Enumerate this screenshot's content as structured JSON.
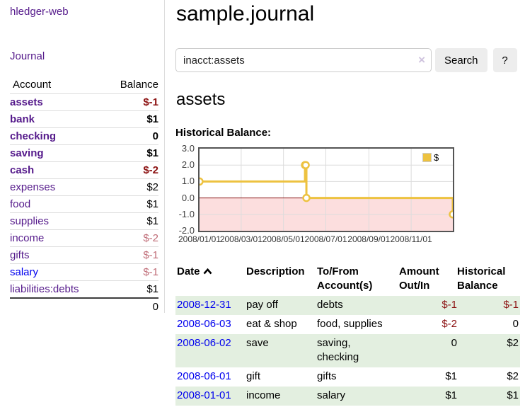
{
  "app": {
    "title": "hledger-web"
  },
  "nav": {
    "journal_label": "Journal"
  },
  "sidebar": {
    "headers": {
      "account": "Account",
      "balance": "Balance"
    },
    "accounts": [
      {
        "name": "assets",
        "balance": "$-1"
      },
      {
        "name": "bank",
        "balance": "$1"
      },
      {
        "name": "checking",
        "balance": "0"
      },
      {
        "name": "saving",
        "balance": "$1"
      },
      {
        "name": "cash",
        "balance": "$-2"
      },
      {
        "name": "expenses",
        "balance": "$2"
      },
      {
        "name": "food",
        "balance": "$1"
      },
      {
        "name": "supplies",
        "balance": "$1"
      },
      {
        "name": "income",
        "balance": "$-2"
      },
      {
        "name": "gifts",
        "balance": "$-1"
      },
      {
        "name": "salary",
        "balance": "$-1"
      },
      {
        "name": "liabilities:debts",
        "balance": "$1"
      }
    ],
    "total": "0"
  },
  "header": {
    "title": "sample.journal"
  },
  "search": {
    "value": "inacct:assets",
    "button_label": "Search",
    "help_label": "?"
  },
  "icons": {
    "clear": "×"
  },
  "account_page": {
    "title": "assets",
    "chart_title": "Historical Balance:"
  },
  "chart_data": {
    "type": "line",
    "title": "Historical Balance:",
    "series": [
      {
        "name": "$",
        "step": true,
        "points": [
          [
            "2008-01-01",
            1
          ],
          [
            "2008-06-01",
            2
          ],
          [
            "2008-06-02",
            2
          ],
          [
            "2008-06-03",
            0
          ],
          [
            "2008-12-31",
            -1
          ]
        ]
      }
    ],
    "xlim": [
      "2008-01-01",
      "2008-12-31"
    ],
    "ylim": [
      -2,
      3
    ],
    "x_ticks": [
      "2008-01-01",
      "2008-03-01",
      "2008-05-01",
      "2008-07-01",
      "2008-09-01",
      "2008-11-01"
    ],
    "x_tick_format": "YYYY/MM/DD",
    "y_ticks": [
      3,
      2,
      1,
      0,
      -1,
      -2
    ],
    "y_tick_labels": [
      "3.0",
      "2.0",
      "1.0",
      "0.0",
      "-1.0",
      "-2.0"
    ],
    "grid": true,
    "legend_position": "top-right",
    "colors": {
      "series": "#edc240",
      "marker_fill": "#ffffff",
      "negative_fill": "#fcdede",
      "zero_line": "#8b1a1a",
      "grid": "#dcdcdc",
      "border": "#545454"
    }
  },
  "register": {
    "headers": {
      "date": "Date",
      "description": "Description",
      "tofrom": "To/From Account(s)",
      "amount": "Amount Out/In",
      "balance": "Historical Balance"
    },
    "rows": [
      {
        "date": "2008-12-31",
        "description": "pay off",
        "accounts": "debts",
        "amount": "$-1",
        "balance": "$-1"
      },
      {
        "date": "2008-06-03",
        "description": "eat & shop",
        "accounts": "food, supplies",
        "amount": "$-2",
        "balance": "0"
      },
      {
        "date": "2008-06-02",
        "description": "save",
        "accounts": "saving, checking",
        "amount": "0",
        "balance": "$2"
      },
      {
        "date": "2008-06-01",
        "description": "gift",
        "accounts": "gifts",
        "amount": "$1",
        "balance": "$2"
      },
      {
        "date": "2008-01-01",
        "description": "income",
        "accounts": "salary",
        "amount": "$1",
        "balance": "$1"
      }
    ]
  },
  "colors": {
    "link_purple": "#551a8b",
    "link_blue": "#0000ee",
    "negative_strong": "#8b1010",
    "negative_muted": "#bf6b76",
    "row_green": "#e3efe0",
    "button_gray": "#ededed",
    "divider": "#dddddd"
  }
}
